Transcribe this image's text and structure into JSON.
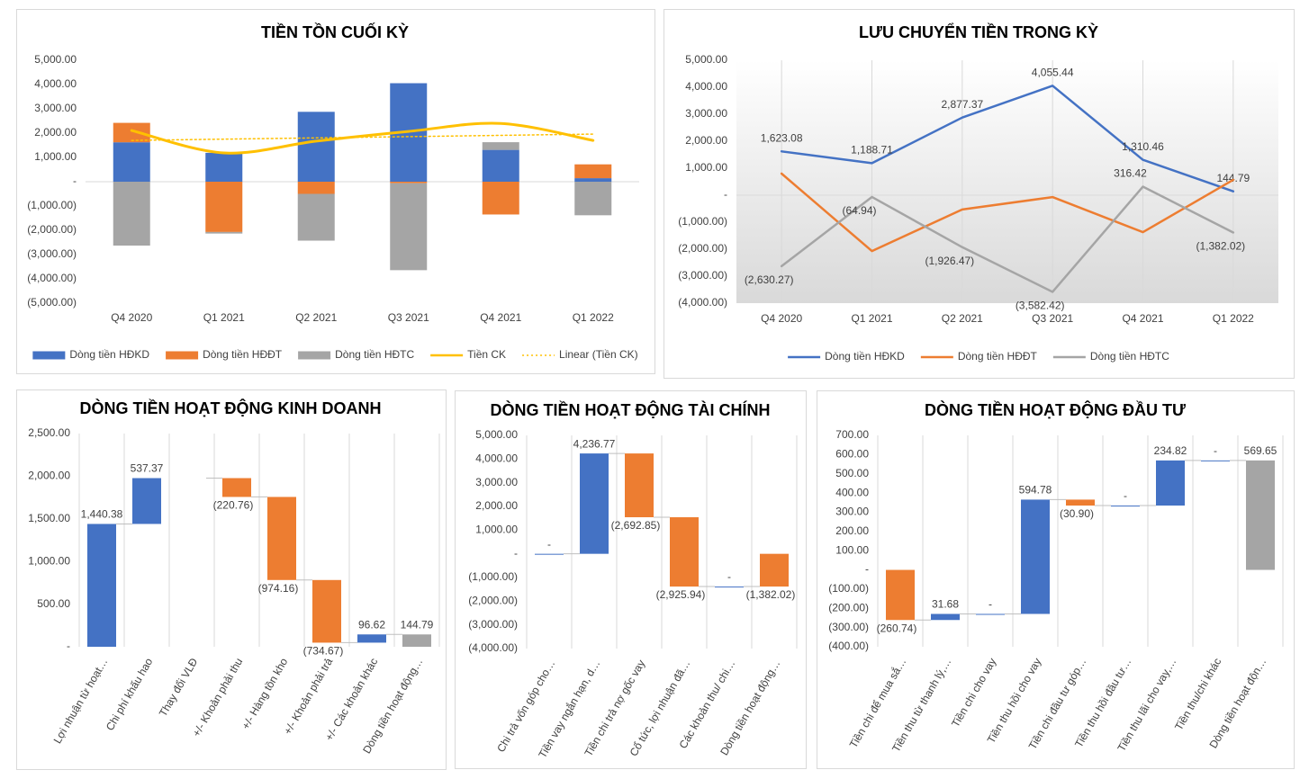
{
  "chart_data": [
    {
      "type": "combo",
      "title": "TIỀN TỒN CUỐI KỲ",
      "categories": [
        "Q4 2020",
        "Q1 2021",
        "Q2 2021",
        "Q3 2021",
        "Q4 2021",
        "Q1 2022"
      ],
      "series": [
        {
          "name": "Dòng tiền HĐKD",
          "type": "bar",
          "color": "#4472c4",
          "values": [
            1623.08,
            1188.71,
            2877.37,
            4055.44,
            1310.46,
            144.79
          ]
        },
        {
          "name": "Dòng tiền HĐĐT",
          "type": "bar",
          "color": "#ed7d31",
          "values": [
            800,
            -2070,
            -500,
            -60,
            -1350,
            569.65
          ]
        },
        {
          "name": "Dòng tiền HĐTC",
          "type": "bar",
          "color": "#a5a5a5",
          "values": [
            -2630.27,
            -64.94,
            -1926.47,
            -3582.42,
            316.42,
            -1382.02
          ]
        },
        {
          "name": "Tiền CK",
          "type": "line",
          "smooth": true,
          "color": "#ffc000",
          "values": [
            2110,
            1185,
            1670,
            2070,
            2400,
            1700
          ]
        },
        {
          "name": "Linear (Tiền CK)",
          "type": "line",
          "style": "dotted",
          "color": "#ffc000",
          "values": [
            1700,
            1752,
            1804,
            1856,
            1908,
            1960
          ]
        }
      ],
      "ylim": [
        -5000,
        5000
      ],
      "yticks": [
        {
          "value": 5000,
          "label": "5,000.00"
        },
        {
          "value": 4000,
          "label": "4,000.00"
        },
        {
          "value": 3000,
          "label": "3,000.00"
        },
        {
          "value": 2000,
          "label": "2,000.00"
        },
        {
          "value": 1000,
          "label": "1,000.00"
        },
        {
          "value": 0,
          "label": "-"
        },
        {
          "value": -1000,
          "label": "(1,000.00)"
        },
        {
          "value": -2000,
          "label": "(2,000.00)"
        },
        {
          "value": -3000,
          "label": "(3,000.00)"
        },
        {
          "value": -4000,
          "label": "(4,000.00)"
        },
        {
          "value": -5000,
          "label": "(5,000.00)"
        }
      ],
      "zero_line": true,
      "legend": "bottom"
    },
    {
      "type": "line",
      "title": "LƯU CHUYỂN TIỀN TRONG KỲ",
      "categories": [
        "Q4 2020",
        "Q1 2021",
        "Q2 2021",
        "Q3 2021",
        "Q4 2021",
        "Q1 2022"
      ],
      "series": [
        {
          "name": "Dòng tiền HĐKD",
          "color": "#4472c4",
          "values": [
            1623.08,
            1188.71,
            2877.37,
            4055.44,
            1310.46,
            144.79
          ],
          "value_labels": [
            "1,623.08",
            "1,188.71",
            "2,877.37",
            "4,055.44",
            "1,310.46",
            "144.79"
          ]
        },
        {
          "name": "Dòng tiền HĐĐT",
          "color": "#ed7d31",
          "values": [
            800,
            -2070,
            -530,
            -70,
            -1370,
            569.65
          ]
        },
        {
          "name": "Dòng tiền HĐTC",
          "color": "#a5a5a5",
          "values": [
            -2630.27,
            -64.94,
            -1926.47,
            -3582.42,
            316.42,
            -1382.02
          ],
          "value_labels": [
            "(2,630.27)",
            "(64.94)",
            "(1,926.47)",
            "(3,582.42)",
            "316.42",
            "(1,382.02)"
          ]
        }
      ],
      "ylim": [
        -4000,
        5000
      ],
      "yticks": [
        {
          "value": 5000,
          "label": "5,000.00"
        },
        {
          "value": 4000,
          "label": "4,000.00"
        },
        {
          "value": 3000,
          "label": "3,000.00"
        },
        {
          "value": 2000,
          "label": "2,000.00"
        },
        {
          "value": 1000,
          "label": "1,000.00"
        },
        {
          "value": 0,
          "label": "-"
        },
        {
          "value": -1000,
          "label": "(1,000.00)"
        },
        {
          "value": -2000,
          "label": "(2,000.00)"
        },
        {
          "value": -3000,
          "label": "(3,000.00)"
        },
        {
          "value": -4000,
          "label": "(4,000.00)"
        }
      ],
      "zero_line": true,
      "vgrid": true,
      "legend": "bottom"
    },
    {
      "type": "waterfall",
      "title": "DÒNG TIỀN HOẠT ĐỘNG KINH DOANH",
      "categories": [
        "Lợi nhuận từ hoạt…",
        "Chi phí khấu hao",
        "Thay đổi VLĐ",
        "+/- Khoản phải thu",
        "+/- Hàng tồn kho",
        "+/- Khoản phải trả",
        "+/- Các khoản khác",
        "Dòng tiền hoạt động…"
      ],
      "values": [
        1440.38,
        537.37,
        null,
        -220.76,
        -974.16,
        -734.67,
        96.62,
        144.79
      ],
      "value_labels": [
        "1,440.38",
        "537.37",
        null,
        "(220.76)",
        "(974.16)",
        "(734.67)",
        "96.62",
        "144.79"
      ],
      "measure": [
        "relative",
        "relative",
        "relative",
        "relative",
        "relative",
        "relative",
        "relative",
        "total"
      ],
      "colors": [
        "#4472c4",
        "#4472c4",
        "#4472c4",
        "#ed7d31",
        "#ed7d31",
        "#ed7d31",
        "#4472c4",
        "#a5a5a5"
      ],
      "ylim": [
        0,
        2500
      ],
      "yticks": [
        {
          "value": 2500,
          "label": "2,500.00"
        },
        {
          "value": 2000,
          "label": "2,000.00"
        },
        {
          "value": 1500,
          "label": "1,500.00"
        },
        {
          "value": 1000,
          "label": "1,000.00"
        },
        {
          "value": 500,
          "label": "500.00"
        },
        {
          "value": 0,
          "label": "-"
        }
      ],
      "vgrid": true
    },
    {
      "type": "waterfall",
      "title": "DÒNG TIỀN HOẠT ĐỘNG TÀI CHÍNH",
      "categories": [
        "Chi trả vốn góp cho…",
        "Tiền vay ngắn hạn, d…",
        "Tiền chi trả nợ gốc vay",
        "Cổ tức, lợi nhuận đã…",
        "Các khoản thu/ chi…",
        "Dòng tiền hoạt động…"
      ],
      "values": [
        0,
        4236.77,
        -2692.85,
        -2925.94,
        0,
        -1382.02
      ],
      "value_labels": [
        "-",
        "4,236.77",
        "(2,692.85)",
        "(2,925.94)",
        "-",
        "(1,382.02)"
      ],
      "measure": [
        "relative",
        "relative",
        "relative",
        "relative",
        "relative",
        "total"
      ],
      "colors": [
        "#4472c4",
        "#4472c4",
        "#ed7d31",
        "#ed7d31",
        "#4472c4",
        "#ed7d31"
      ],
      "ylim": [
        -4000,
        5000
      ],
      "yticks": [
        {
          "value": 5000,
          "label": "5,000.00"
        },
        {
          "value": 4000,
          "label": "4,000.00"
        },
        {
          "value": 3000,
          "label": "3,000.00"
        },
        {
          "value": 2000,
          "label": "2,000.00"
        },
        {
          "value": 1000,
          "label": "1,000.00"
        },
        {
          "value": 0,
          "label": "-"
        },
        {
          "value": -1000,
          "label": "(1,000.00)"
        },
        {
          "value": -2000,
          "label": "(2,000.00)"
        },
        {
          "value": -3000,
          "label": "(3,000.00)"
        },
        {
          "value": -4000,
          "label": "(4,000.00)"
        }
      ],
      "vgrid": true
    },
    {
      "type": "waterfall",
      "title": "DÒNG TIỀN HOẠT ĐỘNG ĐẦU TƯ",
      "categories": [
        "Tiền chi để mua sắ…",
        "Tiền thu từ thanh lý,…",
        "Tiền chi cho vay",
        "Tiền thu hồi cho vay",
        "Tiền chi đầu tư góp…",
        "Tiền thu hồi đầu tư…",
        "Tiền thu lãi cho vay,…",
        "Tiền thu/chi khác",
        "Dòng tiền hoạt độn…"
      ],
      "values": [
        -260.74,
        31.68,
        0,
        594.78,
        -30.9,
        0,
        234.82,
        0,
        569.65
      ],
      "value_labels": [
        "(260.74)",
        "31.68",
        "-",
        "594.78",
        "(30.90)",
        "-",
        "234.82",
        "-",
        "569.65"
      ],
      "measure": [
        "relative",
        "relative",
        "relative",
        "relative",
        "relative",
        "relative",
        "relative",
        "relative",
        "total"
      ],
      "colors": [
        "#ed7d31",
        "#4472c4",
        "#4472c4",
        "#4472c4",
        "#ed7d31",
        "#4472c4",
        "#4472c4",
        "#4472c4",
        "#a5a5a5"
      ],
      "ylim": [
        -400,
        700
      ],
      "yticks": [
        {
          "value": 700,
          "label": "700.00"
        },
        {
          "value": 600,
          "label": "600.00"
        },
        {
          "value": 500,
          "label": "500.00"
        },
        {
          "value": 400,
          "label": "400.00"
        },
        {
          "value": 300,
          "label": "300.00"
        },
        {
          "value": 200,
          "label": "200.00"
        },
        {
          "value": 100,
          "label": "100.00"
        },
        {
          "value": 0,
          "label": "-"
        },
        {
          "value": -100,
          "label": "(100.00)"
        },
        {
          "value": -200,
          "label": "(200.00)"
        },
        {
          "value": -300,
          "label": "(300.00)"
        },
        {
          "value": -400,
          "label": "(400.00)"
        }
      ],
      "vgrid": true
    }
  ]
}
